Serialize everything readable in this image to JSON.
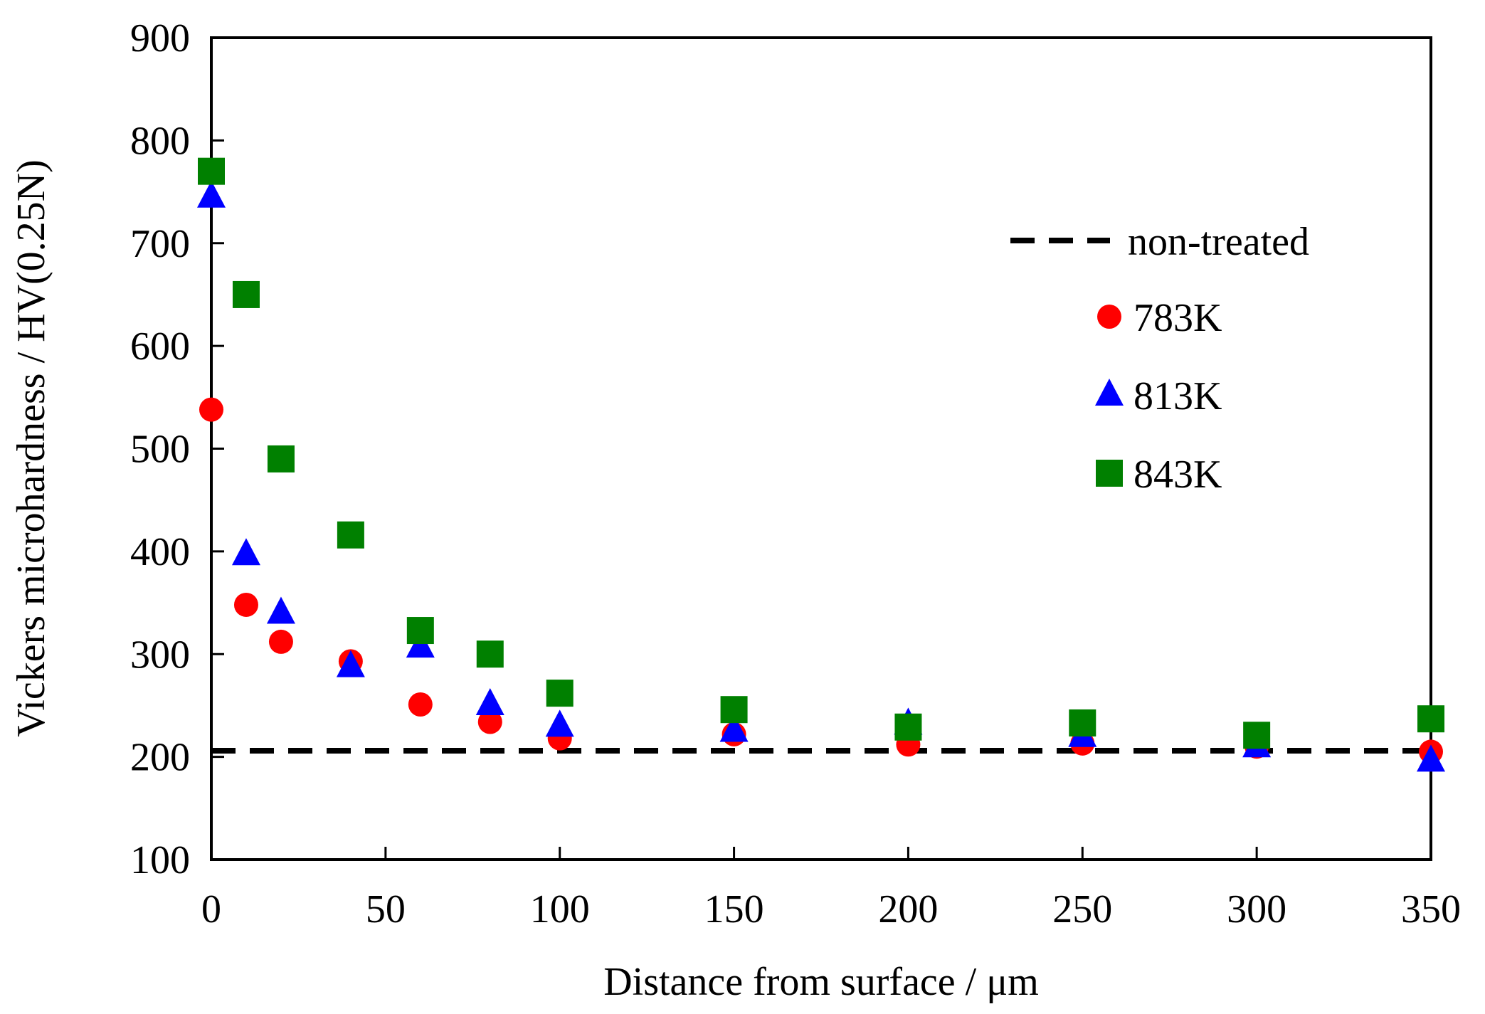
{
  "chart_data": {
    "type": "scatter",
    "title": "",
    "xlabel": "Distance from surface / μm",
    "ylabel": "Vickers microhardness / HV(0.25N)",
    "xlim": [
      0,
      350
    ],
    "ylim": [
      100,
      900
    ],
    "xticks": [
      0,
      50,
      100,
      150,
      200,
      250,
      300,
      350
    ],
    "yticks": [
      100,
      200,
      300,
      400,
      500,
      600,
      700,
      800,
      900
    ],
    "grid": false,
    "legend_position": "top-right",
    "reference_line": {
      "name": "non-treated",
      "value": 206,
      "color": "#000000",
      "style": "dashed"
    },
    "series": [
      {
        "name": "783K",
        "marker": "circle",
        "color": "#ff0000",
        "x": [
          0,
          10,
          20,
          40,
          60,
          80,
          100,
          150,
          200,
          250,
          300,
          350
        ],
        "values": [
          538,
          348,
          312,
          293,
          251,
          234,
          218,
          222,
          212,
          213,
          210,
          205
        ]
      },
      {
        "name": "813K",
        "marker": "triangle",
        "color": "#0000ff",
        "x": [
          0,
          10,
          20,
          40,
          60,
          80,
          100,
          150,
          200,
          250,
          300,
          350
        ],
        "values": [
          745,
          397,
          340,
          288,
          307,
          251,
          230,
          225,
          232,
          220,
          210,
          196
        ]
      },
      {
        "name": "843K",
        "marker": "square",
        "color": "#008000",
        "x": [
          0,
          10,
          20,
          40,
          60,
          80,
          100,
          150,
          200,
          250,
          300,
          350
        ],
        "values": [
          770,
          650,
          490,
          416,
          323,
          300,
          262,
          246,
          229,
          233,
          221,
          237
        ]
      }
    ]
  }
}
